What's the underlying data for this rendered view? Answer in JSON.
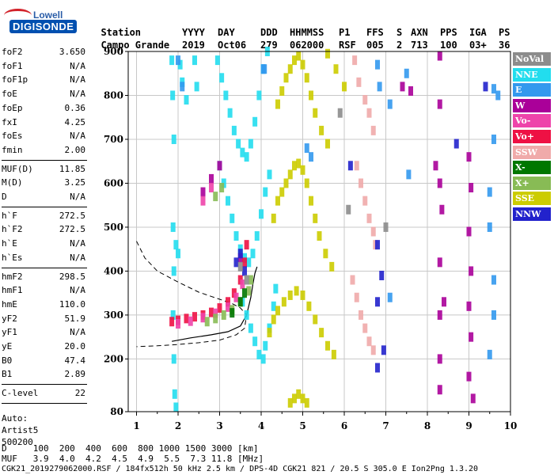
{
  "logo": {
    "top": "Lowell",
    "bottom": "DIGISONDE"
  },
  "header": {
    "labels": [
      "Station",
      "YYYY",
      "DAY",
      "DDD",
      "HHMMSS",
      "P1",
      "FFS",
      "S",
      "AXN",
      "PPS",
      "IGA",
      "PS"
    ],
    "values": [
      "Campo Grande",
      "2019",
      "Oct06",
      "279",
      "062000",
      "RSF",
      "005",
      "2",
      "713",
      "100",
      "03+",
      "36"
    ]
  },
  "parameters": {
    "group1": [
      [
        "foF2",
        "3.650"
      ],
      [
        "foF1",
        "N/A"
      ],
      [
        "foF1p",
        "N/A"
      ],
      [
        "foE",
        "N/A"
      ],
      [
        "foEp",
        "0.36"
      ],
      [
        "fxI",
        "4.25"
      ],
      [
        "foEs",
        "N/A"
      ],
      [
        "fmin",
        "2.00"
      ]
    ],
    "group2": [
      [
        "MUF(D)",
        "11.85"
      ],
      [
        "M(D)",
        "3.25"
      ],
      [
        "D",
        "N/A"
      ]
    ],
    "group3": [
      [
        "h`F",
        "272.5"
      ],
      [
        "h`F2",
        "272.5"
      ],
      [
        "h`E",
        "N/A"
      ],
      [
        "h`Es",
        "N/A"
      ]
    ],
    "group4": [
      [
        "hmF2",
        "298.5"
      ],
      [
        "hmF1",
        "N/A"
      ],
      [
        "hmE",
        "110.0"
      ],
      [
        "yF2",
        "51.9"
      ],
      [
        "yF1",
        "N/A"
      ],
      [
        "yE",
        "20.0"
      ],
      [
        "B0",
        "47.4"
      ],
      [
        "B1",
        "2.89"
      ]
    ],
    "group5": [
      [
        "C-level",
        "22"
      ]
    ],
    "auto": [
      "Auto:",
      "Artist5",
      "500200"
    ]
  },
  "bottom": {
    "d_line": "D     100  200  400  600  800 1000 1500 3000 [km]",
    "muf_line": "MUF   3.9  4.0  4.2  4.5  4.9  5.5  7.3 11.8 [MHz]",
    "file_line": "CGK21_2019279062000.RSF / 184fx512h 50 kHz 2.5 km / DPS-4D CGK21 821 / 20.5 S 305.0 E Ion2Png 1.3.20"
  },
  "legend": [
    {
      "label": "NoVal",
      "color": "#8c8c8c"
    },
    {
      "label": "NNE",
      "color": "#22ddee"
    },
    {
      "label": "E",
      "color": "#3399ee"
    },
    {
      "label": "W",
      "color": "#aa0099"
    },
    {
      "label": "Vo-",
      "color": "#ee44aa"
    },
    {
      "label": "Vo+",
      "color": "#ee1144"
    },
    {
      "label": "SSW",
      "color": "#f0aaaa"
    },
    {
      "label": "X-",
      "color": "#007700"
    },
    {
      "label": "X+",
      "color": "#88bb55"
    },
    {
      "label": "SSE",
      "color": "#cccc00"
    },
    {
      "label": "NNW",
      "color": "#2222cc"
    }
  ],
  "chart_data": {
    "type": "scatter",
    "title": "",
    "xlabel": "",
    "ylabel": "",
    "xlim": [
      0.8,
      10
    ],
    "ylim": [
      80,
      900
    ],
    "x_ticks": [
      1,
      2,
      3,
      4,
      5,
      6,
      7,
      8,
      9,
      10
    ],
    "y_ticks": [
      80,
      200,
      300,
      400,
      500,
      600,
      700,
      800,
      900
    ],
    "grid": true,
    "legend_position": "right",
    "series": [
      {
        "name": "NNE",
        "color": "#22ddee",
        "points": [
          [
            2.95,
            880
          ],
          [
            3.05,
            840
          ],
          [
            3.15,
            800
          ],
          [
            3.25,
            760
          ],
          [
            3.35,
            720
          ],
          [
            3.45,
            690
          ],
          [
            3.55,
            670
          ],
          [
            3.65,
            660
          ],
          [
            3.75,
            690
          ],
          [
            3.85,
            740
          ],
          [
            3.95,
            800
          ],
          [
            4.05,
            860
          ],
          [
            4.15,
            900
          ],
          [
            3.0,
            640
          ],
          [
            3.1,
            600
          ],
          [
            3.2,
            560
          ],
          [
            3.3,
            520
          ],
          [
            3.4,
            480
          ],
          [
            3.5,
            450
          ],
          [
            3.6,
            430
          ],
          [
            3.7,
            420
          ],
          [
            3.8,
            440
          ],
          [
            3.9,
            480
          ],
          [
            4.0,
            530
          ],
          [
            4.1,
            580
          ],
          [
            4.2,
            620
          ],
          [
            3.55,
            330
          ],
          [
            3.65,
            300
          ],
          [
            3.75,
            270
          ],
          [
            3.85,
            240
          ],
          [
            3.95,
            210
          ],
          [
            4.05,
            200
          ],
          [
            4.1,
            230
          ],
          [
            4.2,
            270
          ],
          [
            4.3,
            320
          ],
          [
            4.35,
            360
          ],
          [
            1.85,
            880
          ],
          [
            1.87,
            800
          ],
          [
            1.9,
            700
          ],
          [
            1.88,
            500
          ],
          [
            1.9,
            400
          ],
          [
            1.88,
            300
          ],
          [
            1.9,
            200
          ],
          [
            1.92,
            120
          ],
          [
            1.95,
            90
          ],
          [
            2.05,
            870
          ],
          [
            2.1,
            830
          ],
          [
            2.2,
            790
          ],
          [
            1.95,
            460
          ],
          [
            2.0,
            440
          ],
          [
            2.4,
            880
          ],
          [
            2.45,
            820
          ]
        ]
      },
      {
        "name": "SSE",
        "color": "#cccc00",
        "points": [
          [
            4.4,
            780
          ],
          [
            4.5,
            810
          ],
          [
            4.6,
            840
          ],
          [
            4.7,
            860
          ],
          [
            4.8,
            880
          ],
          [
            4.9,
            890
          ],
          [
            5.0,
            870
          ],
          [
            5.1,
            840
          ],
          [
            5.2,
            800
          ],
          [
            5.3,
            760
          ],
          [
            5.45,
            720
          ],
          [
            5.6,
            690
          ],
          [
            4.3,
            520
          ],
          [
            4.4,
            560
          ],
          [
            4.5,
            580
          ],
          [
            4.6,
            600
          ],
          [
            4.7,
            620
          ],
          [
            4.8,
            640
          ],
          [
            4.9,
            645
          ],
          [
            5.0,
            630
          ],
          [
            5.1,
            600
          ],
          [
            5.2,
            560
          ],
          [
            5.3,
            520
          ],
          [
            5.4,
            480
          ],
          [
            5.55,
            440
          ],
          [
            5.7,
            410
          ],
          [
            4.2,
            260
          ],
          [
            4.3,
            290
          ],
          [
            4.4,
            310
          ],
          [
            4.55,
            330
          ],
          [
            4.7,
            345
          ],
          [
            4.85,
            355
          ],
          [
            5.0,
            345
          ],
          [
            5.15,
            320
          ],
          [
            5.3,
            290
          ],
          [
            5.45,
            260
          ],
          [
            5.6,
            230
          ],
          [
            5.75,
            210
          ],
          [
            4.7,
            100
          ],
          [
            4.8,
            110
          ],
          [
            4.9,
            120
          ],
          [
            5.0,
            110
          ],
          [
            5.1,
            100
          ],
          [
            5.6,
            895
          ],
          [
            5.8,
            860
          ],
          [
            6.0,
            820
          ]
        ]
      },
      {
        "name": "SSW",
        "color": "#f0aaaa",
        "points": [
          [
            6.25,
            880
          ],
          [
            6.35,
            830
          ],
          [
            6.5,
            790
          ],
          [
            6.6,
            760
          ],
          [
            6.7,
            720
          ],
          [
            6.3,
            640
          ],
          [
            6.4,
            600
          ],
          [
            6.5,
            560
          ],
          [
            6.6,
            520
          ],
          [
            6.7,
            490
          ],
          [
            6.75,
            460
          ],
          [
            6.2,
            380
          ],
          [
            6.3,
            340
          ],
          [
            6.4,
            300
          ],
          [
            6.5,
            270
          ],
          [
            6.6,
            240
          ],
          [
            6.7,
            220
          ]
        ]
      },
      {
        "name": "W",
        "color": "#aa0099",
        "points": [
          [
            7.4,
            820
          ],
          [
            7.6,
            810
          ],
          [
            8.3,
            890
          ],
          [
            8.3,
            780
          ],
          [
            8.2,
            640
          ],
          [
            8.3,
            600
          ],
          [
            8.35,
            540
          ],
          [
            8.3,
            420
          ],
          [
            8.4,
            330
          ],
          [
            8.3,
            300
          ],
          [
            8.3,
            200
          ],
          [
            8.3,
            130
          ],
          [
            9.0,
            660
          ],
          [
            9.05,
            590
          ],
          [
            9.0,
            490
          ],
          [
            9.05,
            400
          ],
          [
            9.0,
            320
          ],
          [
            9.05,
            250
          ],
          [
            9.0,
            160
          ],
          [
            9.1,
            110
          ],
          [
            2.6,
            580
          ],
          [
            2.8,
            610
          ],
          [
            3.0,
            640
          ],
          [
            3.5,
            430
          ]
        ]
      },
      {
        "name": "Vo+",
        "color": "#ee1144",
        "points": [
          [
            1.85,
            285
          ],
          [
            2.0,
            288
          ],
          [
            2.2,
            292
          ],
          [
            2.4,
            296
          ],
          [
            2.6,
            300
          ],
          [
            2.8,
            306
          ],
          [
            3.0,
            316
          ],
          [
            3.2,
            330
          ],
          [
            3.35,
            350
          ],
          [
            3.5,
            380
          ],
          [
            3.6,
            420
          ],
          [
            3.65,
            460
          ]
        ]
      },
      {
        "name": "Vo-",
        "color": "#ee44aa",
        "points": [
          [
            2.0,
            280
          ],
          [
            2.3,
            286
          ],
          [
            2.6,
            294
          ],
          [
            2.9,
            304
          ],
          [
            3.2,
            318
          ],
          [
            3.4,
            340
          ],
          [
            3.55,
            370
          ],
          [
            2.6,
            560
          ],
          [
            2.8,
            590
          ]
        ]
      },
      {
        "name": "X+",
        "color": "#88bb55",
        "points": [
          [
            2.7,
            285
          ],
          [
            2.9,
            292
          ],
          [
            3.1,
            300
          ],
          [
            3.3,
            312
          ],
          [
            3.5,
            330
          ],
          [
            3.7,
            355
          ],
          [
            3.75,
            380
          ],
          [
            2.9,
            570
          ],
          [
            3.05,
            590
          ]
        ]
      },
      {
        "name": "E",
        "color": "#3399ee",
        "points": [
          [
            2.0,
            880
          ],
          [
            2.1,
            820
          ],
          [
            5.1,
            680
          ],
          [
            5.2,
            660
          ],
          [
            6.8,
            870
          ],
          [
            6.85,
            820
          ],
          [
            7.1,
            780
          ],
          [
            7.1,
            340
          ],
          [
            7.5,
            850
          ],
          [
            7.55,
            620
          ],
          [
            9.6,
            815
          ],
          [
            9.7,
            800
          ],
          [
            9.6,
            700
          ],
          [
            9.5,
            580
          ],
          [
            9.5,
            500
          ],
          [
            9.6,
            380
          ],
          [
            9.6,
            300
          ],
          [
            9.5,
            210
          ],
          [
            4.05,
            860
          ],
          [
            4.08,
            860
          ]
        ]
      },
      {
        "name": "NNW",
        "color": "#2222cc",
        "points": [
          [
            3.4,
            420
          ],
          [
            3.5,
            440
          ],
          [
            3.6,
            400
          ],
          [
            6.8,
            460
          ],
          [
            6.9,
            390
          ],
          [
            6.8,
            330
          ],
          [
            6.95,
            220
          ],
          [
            6.8,
            180
          ],
          [
            8.7,
            690
          ],
          [
            9.4,
            820
          ],
          [
            6.15,
            640
          ]
        ]
      },
      {
        "name": "X-",
        "color": "#007700",
        "points": [
          [
            3.3,
            305
          ],
          [
            3.5,
            330
          ],
          [
            3.6,
            350
          ]
        ]
      },
      {
        "name": "NoVal",
        "color": "#8c8c8c",
        "points": [
          [
            3.5,
            410
          ],
          [
            3.65,
            380
          ],
          [
            5.9,
            760
          ],
          [
            6.1,
            540
          ],
          [
            7.0,
            500
          ]
        ]
      }
    ],
    "profile_dashed": [
      [
        1.0,
        468
      ],
      [
        1.2,
        430
      ],
      [
        1.5,
        400
      ],
      [
        2.0,
        375
      ],
      [
        2.5,
        352
      ],
      [
        3.0,
        336
      ],
      [
        3.3,
        326
      ],
      [
        3.5,
        316
      ],
      [
        3.65,
        300
      ],
      [
        3.6,
        270
      ],
      [
        3.4,
        255
      ],
      [
        3.0,
        243
      ],
      [
        2.5,
        237
      ],
      [
        2.0,
        233
      ],
      [
        1.5,
        230
      ],
      [
        1.0,
        228
      ]
    ],
    "profile_solid": [
      [
        1.85,
        240
      ],
      [
        2.3,
        248
      ],
      [
        2.8,
        255
      ],
      [
        3.2,
        262
      ],
      [
        3.5,
        275
      ],
      [
        3.65,
        300
      ],
      [
        3.75,
        340
      ],
      [
        3.8,
        370
      ],
      [
        3.85,
        395
      ],
      [
        3.9,
        410
      ]
    ]
  }
}
